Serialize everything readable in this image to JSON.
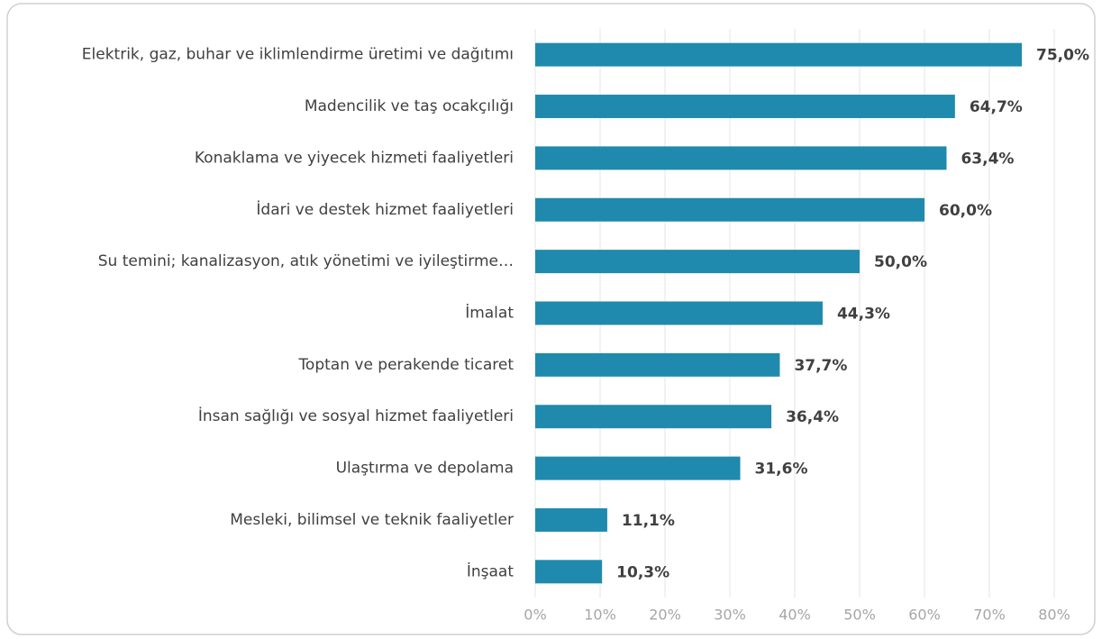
{
  "chart_data": {
    "type": "bar",
    "orientation": "horizontal",
    "categories": [
      "Elektrik, gaz, buhar ve iklimlendirme üretimi ve dağıtımı",
      "Madencilik ve taş ocakçılığı",
      "Konaklama ve yiyecek hizmeti faaliyetleri",
      "İdari ve destek hizmet faaliyetleri",
      "Su temini; kanalizasyon, atık yönetimi ve iyileştirme…",
      "İmalat",
      "Toptan ve perakende ticaret",
      "İnsan sağlığı ve sosyal hizmet faaliyetleri",
      "Ulaştırma ve depolama",
      "Mesleki, bilimsel ve teknik faaliyetler",
      "İnşaat"
    ],
    "values": [
      75.0,
      64.7,
      63.4,
      60.0,
      50.0,
      44.3,
      37.7,
      36.4,
      31.6,
      11.1,
      10.3
    ],
    "value_labels": [
      "75,0%",
      "64,7%",
      "63,4%",
      "60,0%",
      "50,0%",
      "44,3%",
      "37,7%",
      "36,4%",
      "31,6%",
      "11,1%",
      "10,3%"
    ],
    "color": "#1f8aad",
    "xlim": [
      0,
      80
    ],
    "xticks": [
      {
        "value": 0,
        "label": "0%"
      },
      {
        "value": 10,
        "label": "10%"
      },
      {
        "value": 20,
        "label": "20%"
      },
      {
        "value": 30,
        "label": "30%"
      },
      {
        "value": 40,
        "label": "40%"
      },
      {
        "value": 50,
        "label": "50%"
      },
      {
        "value": 60,
        "label": "60%"
      },
      {
        "value": 70,
        "label": "70%"
      },
      {
        "value": 80,
        "label": "80%"
      }
    ],
    "grid": true
  }
}
